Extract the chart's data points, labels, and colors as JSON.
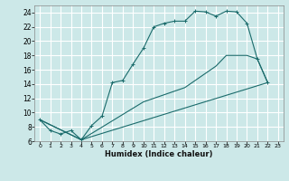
{
  "bg_color": "#cce8e8",
  "line_color": "#1a6b6b",
  "grid_color": "#ffffff",
  "xlabel": "Humidex (Indice chaleur)",
  "xlim": [
    -0.5,
    23.5
  ],
  "ylim": [
    6,
    25
  ],
  "yticks": [
    6,
    8,
    10,
    12,
    14,
    16,
    18,
    20,
    22,
    24
  ],
  "xticks": [
    0,
    1,
    2,
    3,
    4,
    5,
    6,
    7,
    8,
    9,
    10,
    11,
    12,
    13,
    14,
    15,
    16,
    17,
    18,
    19,
    20,
    21,
    22,
    23
  ],
  "curve1_x": [
    0,
    1,
    2,
    3,
    4,
    5,
    6,
    7,
    8,
    9,
    10,
    11,
    12,
    13,
    14,
    15,
    16,
    17,
    18,
    19,
    20,
    21,
    22
  ],
  "curve1_y": [
    9,
    7.5,
    7,
    7.5,
    6.2,
    8.2,
    9.5,
    14.2,
    14.5,
    16.8,
    19,
    22,
    22.5,
    22.8,
    22.8,
    24.2,
    24.1,
    23.5,
    24.2,
    24.1,
    22.5,
    17.5,
    14.2
  ],
  "curve2_x": [
    0,
    4,
    10,
    14,
    15,
    17,
    18,
    19,
    20,
    21,
    22
  ],
  "curve2_y": [
    9,
    6.2,
    11.5,
    13.5,
    14.5,
    16.5,
    18,
    18,
    18,
    17.5,
    14.2
  ],
  "curve3_x": [
    0,
    4,
    22
  ],
  "curve3_y": [
    9,
    6.2,
    14.2
  ]
}
